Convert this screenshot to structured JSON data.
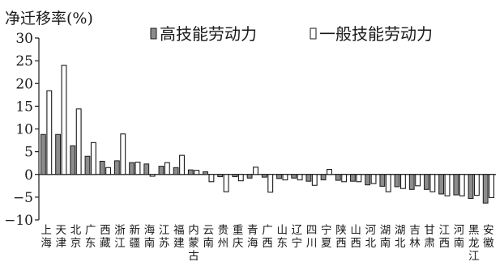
{
  "chart_data": {
    "type": "bar",
    "ylabel": "净迁移率(%)",
    "ylim": [
      -10,
      30
    ],
    "yticks": [
      -10,
      -5,
      0,
      5,
      10,
      15,
      20,
      25,
      30
    ],
    "ytick_labels": [
      "−10",
      "−5",
      "0",
      "5",
      "10",
      "15",
      "20",
      "25",
      "30"
    ],
    "legend_position": "top",
    "grid": false,
    "categories": [
      "上海",
      "天津",
      "北京",
      "广东",
      "西藏",
      "浙江",
      "新疆",
      "海南",
      "江苏",
      "福建",
      "内蒙古",
      "云南",
      "贵州",
      "重庆",
      "青海",
      "广西",
      "山东",
      "辽宁",
      "四川",
      "宁夏",
      "陕西",
      "山西",
      "河北",
      "湖南",
      "湖北",
      "吉林",
      "甘肃",
      "江西",
      "河南",
      "黑龙江",
      "安徽"
    ],
    "series": [
      {
        "name": "高技能劳动力",
        "color": "#8c8c8c",
        "values": [
          8.8,
          8.8,
          6.3,
          4.0,
          2.9,
          3.0,
          2.6,
          2.3,
          1.8,
          1.5,
          1.0,
          0.6,
          -0.5,
          -0.5,
          -0.8,
          -0.6,
          -0.9,
          -0.8,
          -1.5,
          -1.2,
          -1.3,
          -1.5,
          -2.3,
          -2.6,
          -2.7,
          -3.3,
          -3.3,
          -4.3,
          -4.5,
          -5.3,
          -6.3
        ]
      },
      {
        "name": "一般技能劳动力",
        "color": "#ffffff",
        "values": [
          18.4,
          24.0,
          14.4,
          7.0,
          1.5,
          8.9,
          2.7,
          -0.4,
          2.6,
          4.2,
          0.9,
          -1.6,
          -3.8,
          -1.4,
          1.6,
          -3.9,
          -1.2,
          -1.2,
          -2.4,
          1.1,
          -1.6,
          -1.6,
          -2.0,
          -3.8,
          -3.1,
          -2.5,
          -3.8,
          -4.7,
          -4.7,
          -4.6,
          -5.1
        ]
      }
    ]
  }
}
